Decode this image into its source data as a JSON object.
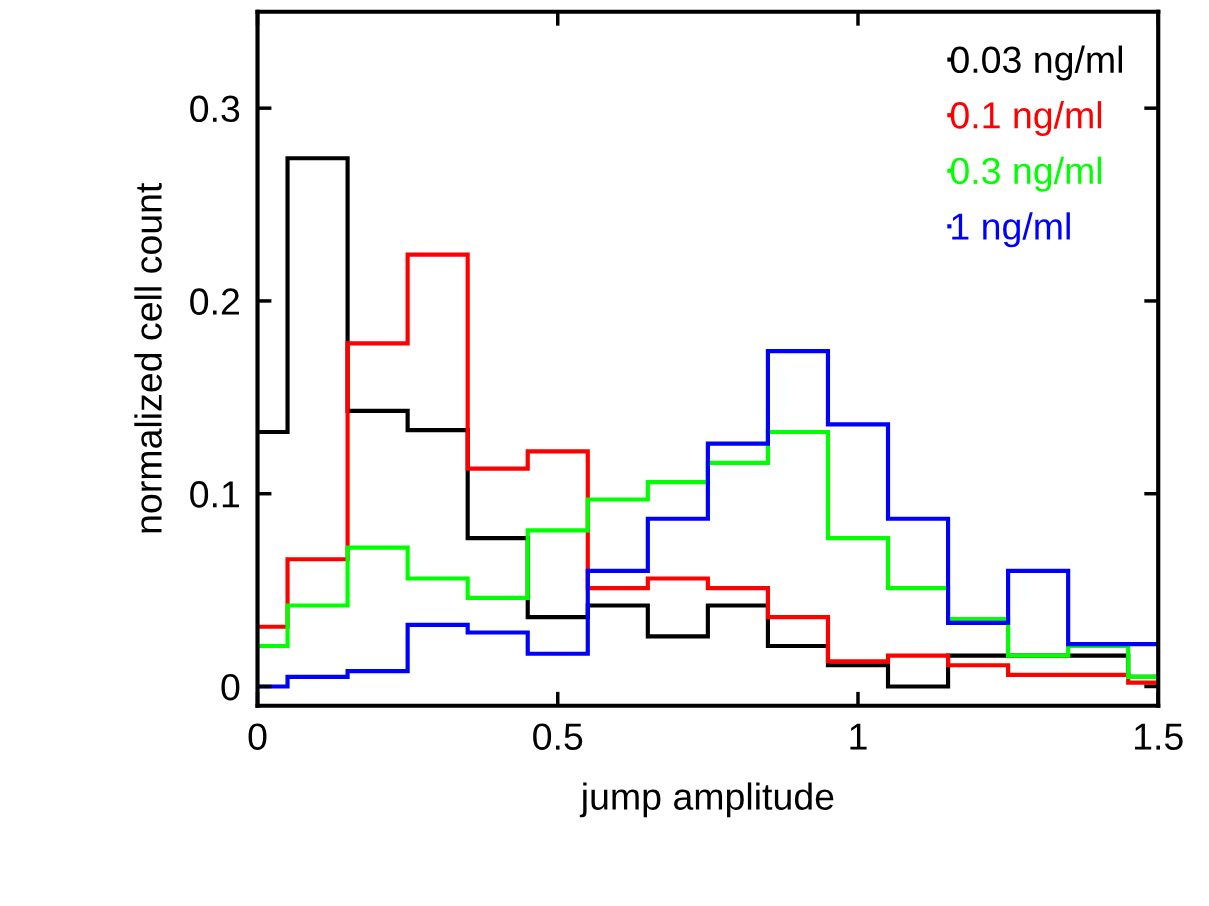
{
  "chart_data": {
    "type": "histogram",
    "xlabel": "jump amplitude",
    "ylabel": "normalized cell count",
    "bins": [
      0,
      0.05,
      0.15,
      0.25,
      0.35,
      0.45,
      0.55,
      0.65,
      0.75,
      0.85,
      0.95,
      1.05,
      1.15,
      1.25,
      1.35,
      1.45,
      1.5
    ],
    "series": [
      {
        "name": "0.03 ng/ml",
        "color": "#000000",
        "values": [
          0.132,
          0.274,
          0.143,
          0.133,
          0.077,
          0.036,
          0.042,
          0.026,
          0.042,
          0.021,
          0.011,
          0.0,
          0.016,
          0.016,
          0.016,
          0.005
        ]
      },
      {
        "name": "0.1 ng/ml",
        "color": "#ff0000",
        "values": [
          0.031,
          0.066,
          0.178,
          0.224,
          0.113,
          0.122,
          0.051,
          0.056,
          0.051,
          0.036,
          0.013,
          0.016,
          0.011,
          0.006,
          0.006,
          0.002
        ]
      },
      {
        "name": "0.3 ng/ml",
        "color": "#00ff00",
        "values": [
          0.021,
          0.042,
          0.072,
          0.056,
          0.046,
          0.081,
          0.097,
          0.106,
          0.116,
          0.132,
          0.077,
          0.051,
          0.035,
          0.016,
          0.021,
          0.005
        ]
      },
      {
        "name": "1 ng/ml",
        "color": "#0000ff",
        "values": [
          0.0,
          0.005,
          0.008,
          0.032,
          0.028,
          0.017,
          0.06,
          0.087,
          0.126,
          0.174,
          0.136,
          0.087,
          0.033,
          0.06,
          0.022,
          0.022
        ]
      }
    ],
    "xlim": [
      0,
      1.5
    ],
    "xticks": [
      0,
      0.5,
      1,
      1.5
    ],
    "ylim": [
      -0.01,
      0.35
    ],
    "yticks": [
      0,
      0.1,
      0.2,
      0.3
    ],
    "grid": false,
    "legend": "top right"
  }
}
